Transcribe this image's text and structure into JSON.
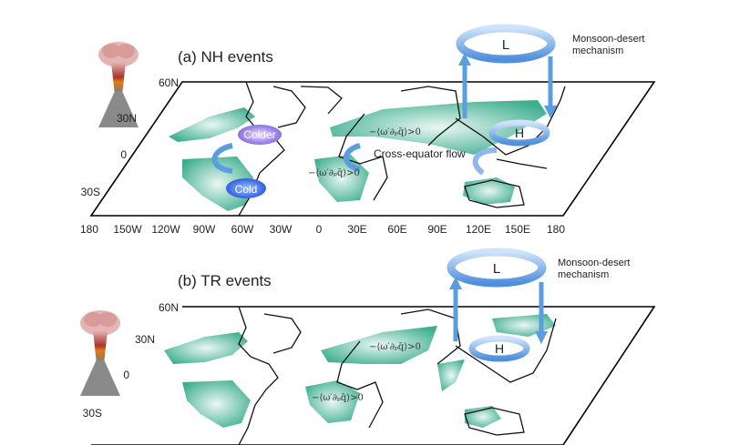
{
  "panels": [
    {
      "title": "(a) NH events",
      "lat_labels": [
        "60N",
        "30N",
        "0",
        "30S"
      ],
      "lon_labels": [
        "180",
        "150W",
        "120W",
        "90W",
        "60W",
        "30W",
        "0",
        "30E",
        "60E",
        "90E",
        "120E",
        "150E",
        "180"
      ],
      "mechanism": [
        "Monsoon-desert",
        "mechanism"
      ],
      "low_label": "L",
      "high_label": "H",
      "colder_label": "Colder",
      "cold_label": "Cold",
      "cross_equator": "Cross-equator flow",
      "formula_north": "−⟨ω′∂ₚq̄⟩>0",
      "formula_south": "−⟨ω′∂ₚq̄⟩>0"
    },
    {
      "title": "(b)  TR events",
      "lat_labels": [
        "60N",
        "30N",
        "0",
        "30S"
      ],
      "mechanism": [
        "Monsoon-desert",
        "mechanism"
      ],
      "low_label": "L",
      "high_label": "H",
      "formula_north": "−⟨ω′∂ₚq̄⟩>0",
      "formula_south": "−⟨ω′∂ₚq̄⟩>0"
    }
  ],
  "colors": {
    "patch": "#3fae8f",
    "arrow": "#5b9ee0",
    "colder": "#8a6fe0",
    "cold": "#3f6fe8"
  }
}
